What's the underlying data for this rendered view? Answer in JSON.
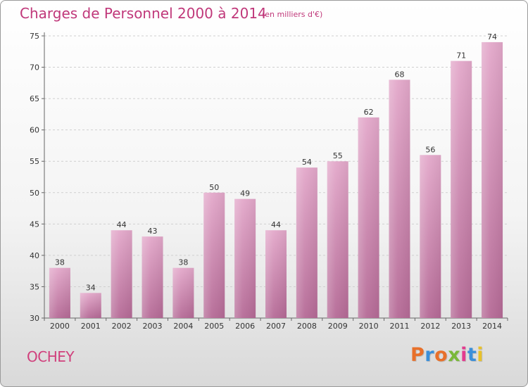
{
  "header": {
    "title": "Charges de Personnel 2000 à 2014",
    "subtitle": "(en milliers d'€)"
  },
  "footer": {
    "commune": "OCHEY",
    "logo": "Proxiti",
    "logo_colors": [
      "#e8702a",
      "#3b8fd9",
      "#e8702a",
      "#7ab83a",
      "#e33b8f",
      "#3b8fd9",
      "#e8c12a"
    ]
  },
  "chart_data": {
    "type": "bar",
    "categories": [
      "2000",
      "2001",
      "2002",
      "2003",
      "2004",
      "2005",
      "2006",
      "2007",
      "2008",
      "2009",
      "2010",
      "2011",
      "2012",
      "2013",
      "2014"
    ],
    "values": [
      38,
      34,
      44,
      43,
      38,
      50,
      49,
      44,
      54,
      55,
      62,
      68,
      56,
      71,
      74
    ],
    "title": "Charges de Personnel 2000 à 2014",
    "ylim": [
      30,
      75
    ],
    "yticks": [
      30,
      35,
      40,
      45,
      50,
      55,
      60,
      65,
      70,
      75
    ],
    "grid": true,
    "bar_color_top": "#e3a8ca",
    "bar_color_bottom": "#b56a96"
  }
}
